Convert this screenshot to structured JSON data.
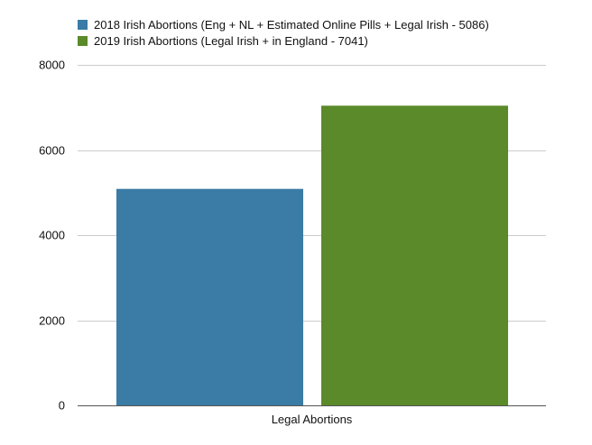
{
  "chart_data": {
    "type": "bar",
    "categories": [
      "Legal Abortions"
    ],
    "series": [
      {
        "name": "2018 Irish Abortions (Eng + NL + Estimated Online Pills + Legal Irish - 5086)",
        "values": [
          5086
        ],
        "color": "#3a7ca5"
      },
      {
        "name": "2019 Irish Abortions (Legal Irish + in England - 7041)",
        "values": [
          7041
        ],
        "color": "#5a8a2a"
      }
    ],
    "ylim": [
      0,
      8000
    ],
    "yticks": [
      0,
      2000,
      4000,
      6000,
      8000
    ],
    "grid": true,
    "legend_position": "top-left"
  }
}
